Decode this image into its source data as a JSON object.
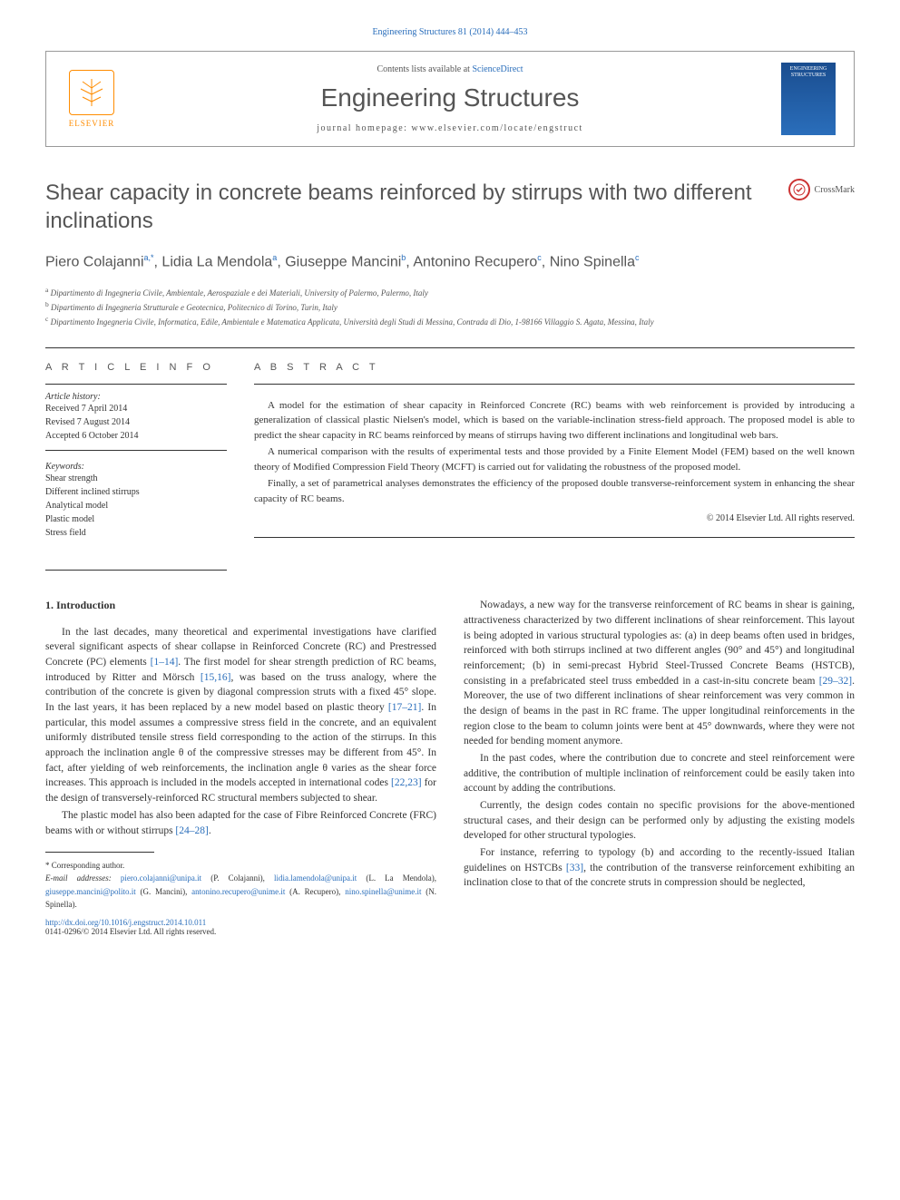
{
  "citation": "Engineering Structures 81 (2014) 444–453",
  "header": {
    "contents_prefix": "Contents lists available at ",
    "sciencedirect": "ScienceDirect",
    "journal_title": "Engineering Structures",
    "homepage_prefix": "journal homepage: ",
    "homepage_url": "www.elsevier.com/locate/engstruct",
    "elsevier": "ELSEVIER",
    "cover_text": "ENGINEERING STRUCTURES"
  },
  "crossmark": "CrossMark",
  "title": "Shear capacity in concrete beams reinforced by stirrups with two different inclinations",
  "authors": [
    {
      "name": "Piero Colajanni",
      "marks": "a,*"
    },
    {
      "name": "Lidia La Mendola",
      "marks": "a"
    },
    {
      "name": "Giuseppe Mancini",
      "marks": "b"
    },
    {
      "name": "Antonino Recupero",
      "marks": "c"
    },
    {
      "name": "Nino Spinella",
      "marks": "c"
    }
  ],
  "affiliations": [
    {
      "mark": "a",
      "text": "Dipartimento di Ingegneria Civile, Ambientale, Aerospaziale e dei Materiali, University of Palermo, Palermo, Italy"
    },
    {
      "mark": "b",
      "text": "Dipartimento di Ingegneria Strutturale e Geotecnica, Politecnico di Torino, Turin, Italy"
    },
    {
      "mark": "c",
      "text": "Dipartimento Ingegneria Civile, Informatica, Edile, Ambientale e Matematica Applicata, Università degli Studi di Messina, Contrada di Dio, 1-98166 Villaggio S. Agata, Messina, Italy"
    }
  ],
  "article_info": {
    "heading": "A R T I C L E   I N F O",
    "history_label": "Article history:",
    "history": [
      "Received 7 April 2014",
      "Revised 7 August 2014",
      "Accepted 6 October 2014"
    ],
    "keywords_label": "Keywords:",
    "keywords": [
      "Shear strength",
      "Different inclined stirrups",
      "Analytical model",
      "Plastic model",
      "Stress field"
    ]
  },
  "abstract": {
    "heading": "A B S T R A C T",
    "paragraphs": [
      "A model for the estimation of shear capacity in Reinforced Concrete (RC) beams with web reinforcement is provided by introducing a generalization of classical plastic Nielsen's model, which is based on the variable-inclination stress-field approach. The proposed model is able to predict the shear capacity in RC beams reinforced by means of stirrups having two different inclinations and longitudinal web bars.",
      "A numerical comparison with the results of experimental tests and those provided by a Finite Element Model (FEM) based on the well known theory of Modified Compression Field Theory (MCFT) is carried out for validating the robustness of the proposed model.",
      "Finally, a set of parametrical analyses demonstrates the efficiency of the proposed double transverse-reinforcement system in enhancing the shear capacity of RC beams."
    ],
    "copyright": "© 2014 Elsevier Ltd. All rights reserved."
  },
  "body": {
    "intro_heading": "1. Introduction",
    "col1": {
      "p1_a": "In the last decades, many theoretical and experimental investigations have clarified several significant aspects of shear collapse in Reinforced Concrete (RC) and Prestressed Concrete (PC) elements ",
      "p1_ref1": "[1–14]",
      "p1_b": ". The first model for shear strength prediction of RC beams, introduced by Ritter and Mörsch ",
      "p1_ref2": "[15,16]",
      "p1_c": ", was based on the truss analogy, where the contribution of the concrete is given by diagonal compression struts with a fixed 45° slope. In the last years, it has been replaced by a new model based on plastic theory ",
      "p1_ref3": "[17–21]",
      "p1_d": ". In particular, this model assumes a compressive stress field in the concrete, and an equivalent uniformly distributed tensile stress field corresponding to the action of the stirrups. In this approach the inclination angle θ of the compressive stresses may be different from 45°. In fact, after yielding of web reinforcements, the inclination angle θ varies as the shear force increases. This approach is included in the models accepted in international codes ",
      "p1_ref4": "[22,23]",
      "p1_e": " for the design of transversely-reinforced RC structural members subjected to shear.",
      "p2_a": "The plastic model has also been adapted for the case of Fibre Reinforced Concrete (FRC) beams with or without stirrups ",
      "p2_ref1": "[24–28]",
      "p2_b": "."
    },
    "col2": {
      "p1_a": "Nowadays, a new way for the transverse reinforcement of RC beams in shear is gaining, attractiveness characterized by two different inclinations of shear reinforcement. This layout is being adopted in various structural typologies as: (a) in deep beams often used in bridges, reinforced with both stirrups inclined at two different angles (90° and 45°) and longitudinal reinforcement; (b) in semi-precast Hybrid Steel-Trussed Concrete Beams (HSTCB), consisting in a prefabricated steel truss embedded in a cast-in-situ concrete beam ",
      "p1_ref1": "[29–32]",
      "p1_b": ". Moreover, the use of two different inclinations of shear reinforcement was very common in the design of beams in the past in RC frame. The upper longitudinal reinforcements in the region close to the beam to column joints were bent at 45° downwards, where they were not needed for bending moment anymore.",
      "p2": "In the past codes, where the contribution due to concrete and steel reinforcement were additive, the contribution of multiple inclination of reinforcement could be easily taken into account by adding the contributions.",
      "p3": "Currently, the design codes contain no specific provisions for the above-mentioned structural cases, and their design can be performed only by adjusting the existing models developed for other structural typologies.",
      "p4_a": "For instance, referring to typology (b) and according to the recently-issued Italian guidelines on HSTCBs ",
      "p4_ref1": "[33]",
      "p4_b": ", the contribution of the transverse reinforcement exhibiting an inclination close to that of the concrete struts in compression should be neglected,"
    }
  },
  "footer": {
    "corresponding": "* Corresponding author.",
    "email_label": "E-mail addresses:",
    "emails": [
      {
        "addr": "piero.colajanni@unipa.it",
        "name": "(P. Colajanni)"
      },
      {
        "addr": "lidia.lamendola@unipa.it",
        "name": "(L. La Mendola)"
      },
      {
        "addr": "giuseppe.mancini@polito.it",
        "name": "(G. Mancini)"
      },
      {
        "addr": "antonino.recupero@unime.it",
        "name": "(A. Recupero)"
      },
      {
        "addr": "nino.spinella@unime.it",
        "name": "(N. Spinella)"
      }
    ],
    "doi": "http://dx.doi.org/10.1016/j.engstruct.2014.10.011",
    "copyright": "0141-0296/© 2014 Elsevier Ltd. All rights reserved."
  }
}
